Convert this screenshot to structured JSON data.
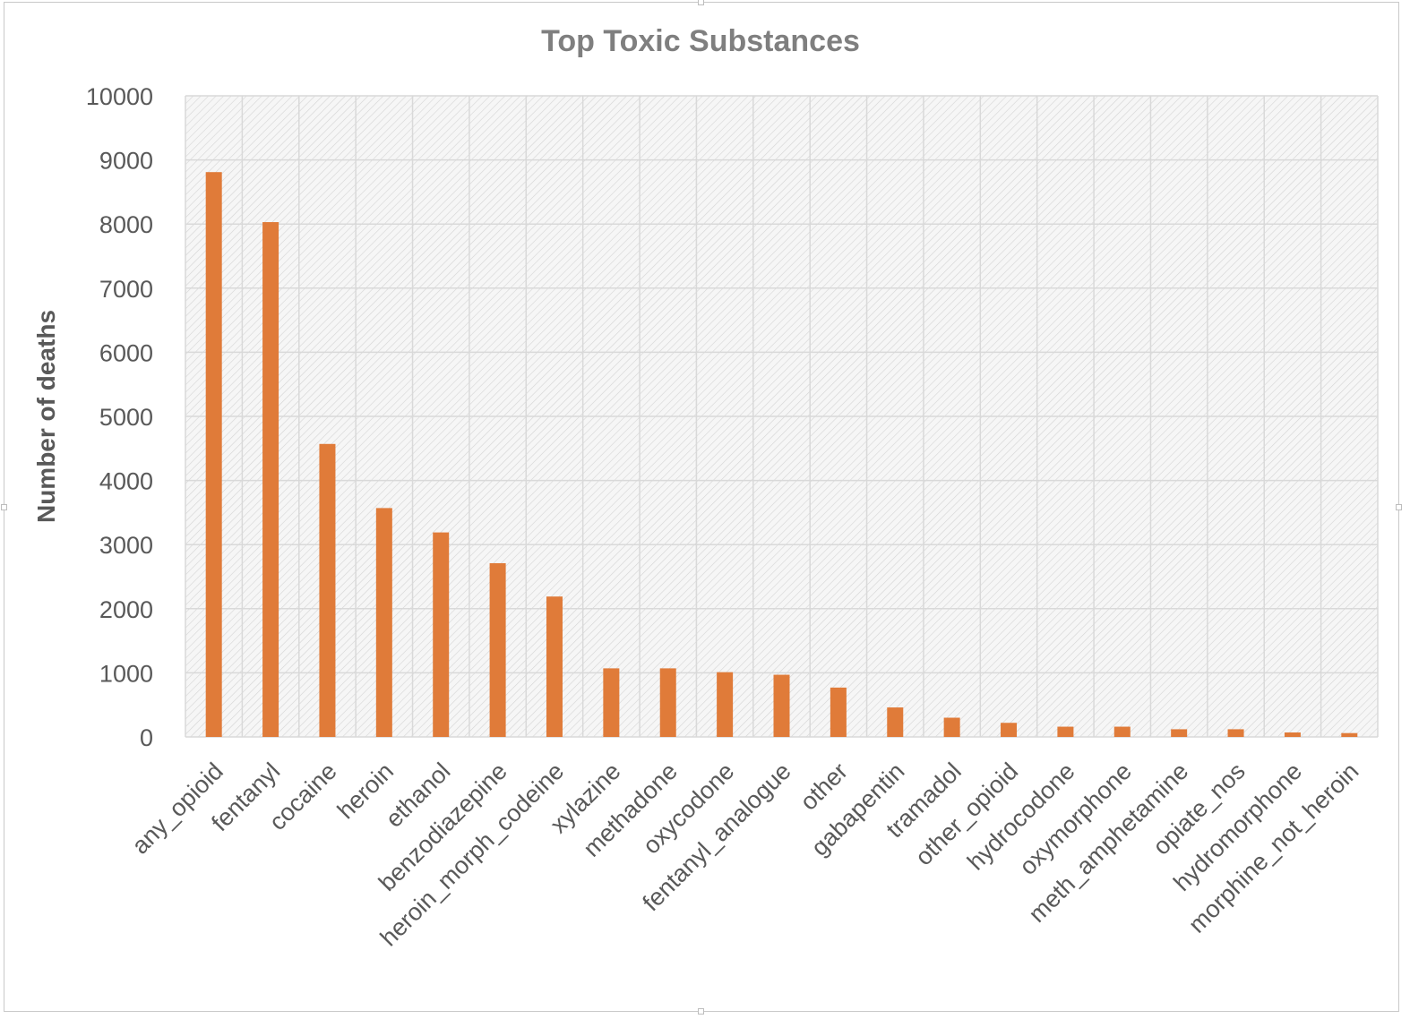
{
  "chart_data": {
    "type": "bar",
    "title": "Top Toxic Substances",
    "xlabel": "",
    "ylabel": "Number of deaths",
    "ylim": [
      0,
      10000
    ],
    "yticks": [
      "0",
      "1000",
      "2000",
      "3000",
      "4000",
      "5000",
      "6000",
      "7000",
      "8000",
      "9000",
      "10000"
    ],
    "grid": true,
    "legend": "none",
    "bar_color": "#E07B39",
    "categories": [
      "any_opioid",
      "fentanyl",
      "cocaine",
      "heroin",
      "ethanol",
      "benzodiazepine",
      "heroin_morph_codeine",
      "xylazine",
      "methadone",
      "oxycodone",
      "fentanyl_analogue",
      "other",
      "gabapentin",
      "tramadol",
      "other_opioid",
      "hydrocodone",
      "oxymorphone",
      "meth_amphetamine",
      "opiate_nos",
      "hydromorphone",
      "morphine_not_heroin"
    ],
    "values": [
      8810,
      8030,
      4570,
      3570,
      3190,
      2710,
      2190,
      1070,
      1070,
      1010,
      970,
      770,
      460,
      300,
      220,
      160,
      160,
      120,
      120,
      70,
      60
    ]
  }
}
